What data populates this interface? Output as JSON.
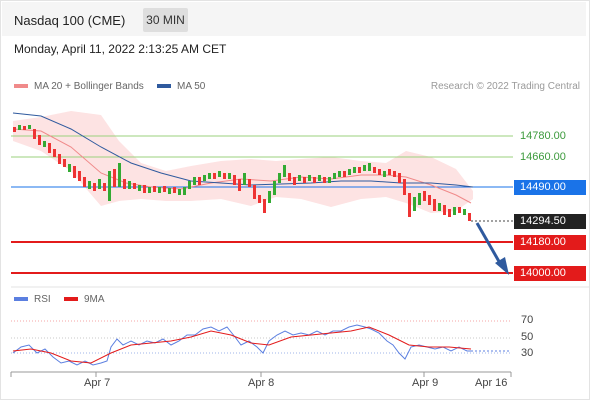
{
  "header": {
    "title": "Nasdaq 100 (CME)",
    "timeframe": "30 MIN"
  },
  "timestamp": "Monday, April 11, 2022 2:13:25 AM CET",
  "legend": {
    "bollinger_label": "MA 20 + Bollinger Bands",
    "ma50_label": "MA 50",
    "bollinger_color": "#f08a8a",
    "ma50_color": "#2f5a9e"
  },
  "credit": "Research © 2022 Trading Central",
  "levels": {
    "r2": "14780.00",
    "r1": "14660.00",
    "pivot": "14490.00",
    "last": "14294.50",
    "s1": "14180.00",
    "s2": "14000.00"
  },
  "level_colors": {
    "resistance": "#9bd27c",
    "pivot": "#1a73e8",
    "support": "#e31b1b",
    "last": "#222222"
  },
  "rsi_legend": {
    "rsi_label": "RSI",
    "ma_label": "9MA",
    "rsi_color": "#5b7fe0",
    "ma_color": "#e31b1b"
  },
  "rsi_axis": [
    "70",
    "50",
    "30"
  ],
  "x_axis": [
    "Apr 7",
    "Apr 8",
    "Apr 9",
    "Apr 16"
  ]
}
